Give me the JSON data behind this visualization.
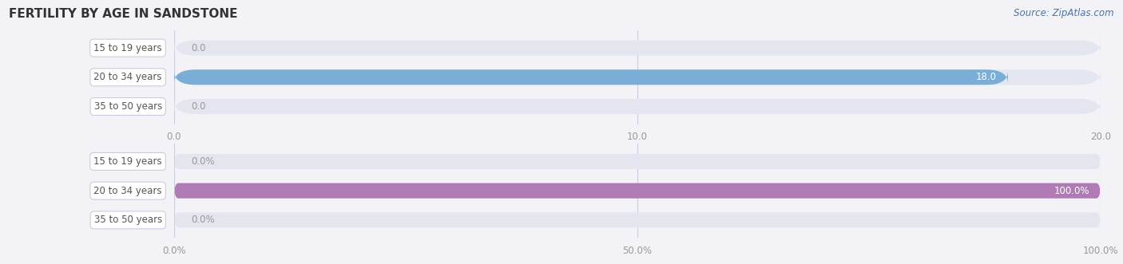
{
  "title": "FERTILITY BY AGE IN SANDSTONE",
  "source": "Source: ZipAtlas.com",
  "top_chart": {
    "categories": [
      "15 to 19 years",
      "20 to 34 years",
      "35 to 50 years"
    ],
    "values": [
      0.0,
      18.0,
      0.0
    ],
    "xlim": [
      0,
      20.0
    ],
    "xticks": [
      0.0,
      10.0,
      20.0
    ],
    "xticklabels": [
      "0.0",
      "10.0",
      "20.0"
    ],
    "bar_color": "#7aaed6",
    "bar_bg_color": "#e4e6ef",
    "label_color_inside": "#ffffff",
    "label_color_outside": "#999999",
    "value_threshold": 15.0
  },
  "bottom_chart": {
    "categories": [
      "15 to 19 years",
      "20 to 34 years",
      "35 to 50 years"
    ],
    "values": [
      0.0,
      100.0,
      0.0
    ],
    "xlim": [
      0,
      100.0
    ],
    "xticks": [
      0.0,
      50.0,
      100.0
    ],
    "xticklabels": [
      "0.0%",
      "50.0%",
      "100.0%"
    ],
    "bar_color": "#b07ab5",
    "bar_bg_color": "#e4e6ef",
    "label_color_inside": "#ffffff",
    "label_color_outside": "#999999",
    "value_threshold": 80.0
  },
  "bg_color": "#f2f2f7",
  "title_fontsize": 11,
  "label_fontsize": 8.5,
  "tick_fontsize": 8.5,
  "source_fontsize": 8.5
}
